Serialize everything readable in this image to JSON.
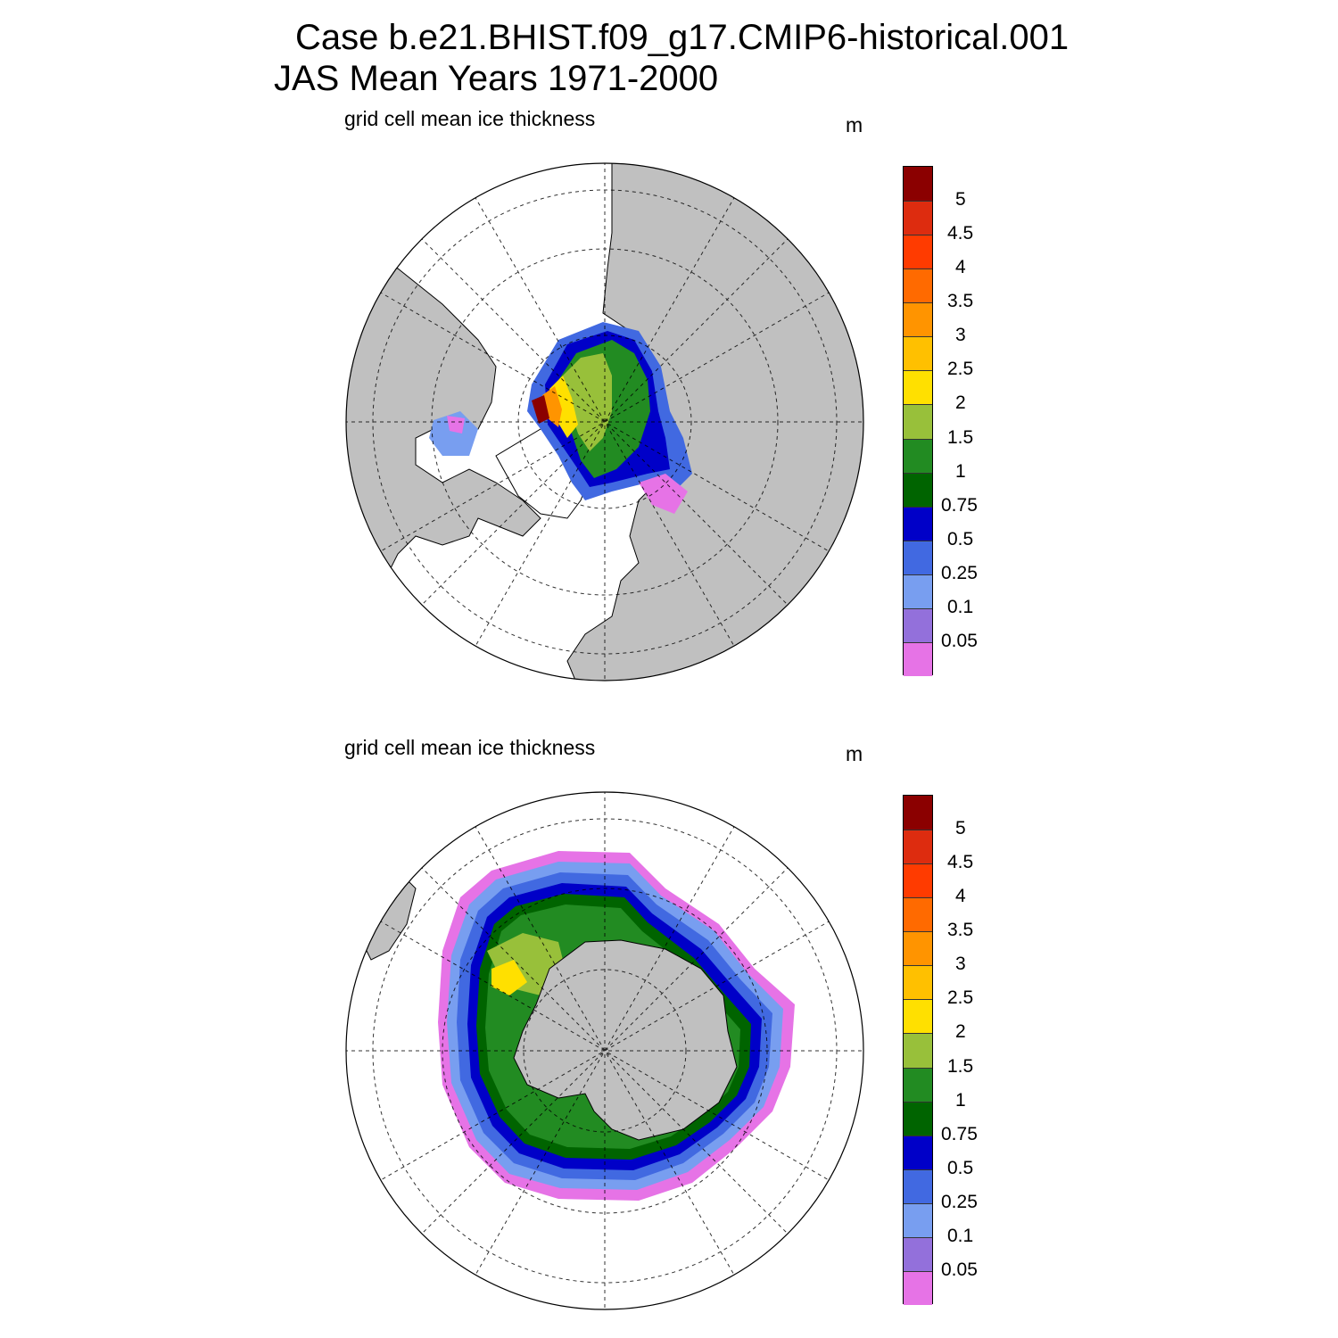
{
  "header": {
    "line1": "Case b.e21.BHIST.f09_g17.CMIP6-historical.001",
    "line2": "JAS Mean   Years 1971-2000"
  },
  "panels": [
    {
      "hemisphere": "north",
      "subtitle": "grid cell mean ice thickness",
      "units": "m"
    },
    {
      "hemisphere": "south",
      "subtitle": "grid cell mean ice thickness",
      "units": "m"
    }
  ],
  "colorbar": {
    "labels": [
      "5",
      "4.5",
      "4",
      "3.5",
      "3",
      "2.5",
      "2",
      "1.5",
      "1",
      "0.75",
      "0.5",
      "0.25",
      "0.1",
      "0.05"
    ],
    "colors_top_to_bottom": [
      "#8b0000",
      "#dd2c0f",
      "#ff3b00",
      "#ff6a00",
      "#ff9400",
      "#ffc000",
      "#ffe000",
      "#98c03a",
      "#228b22",
      "#006400",
      "#0000c8",
      "#4169e1",
      "#789ef0",
      "#9370db",
      "#e673e6"
    ]
  },
  "map_colors": {
    "land": "#c0c0c0",
    "ocean": "#ffffff",
    "coast": "#000000"
  }
}
